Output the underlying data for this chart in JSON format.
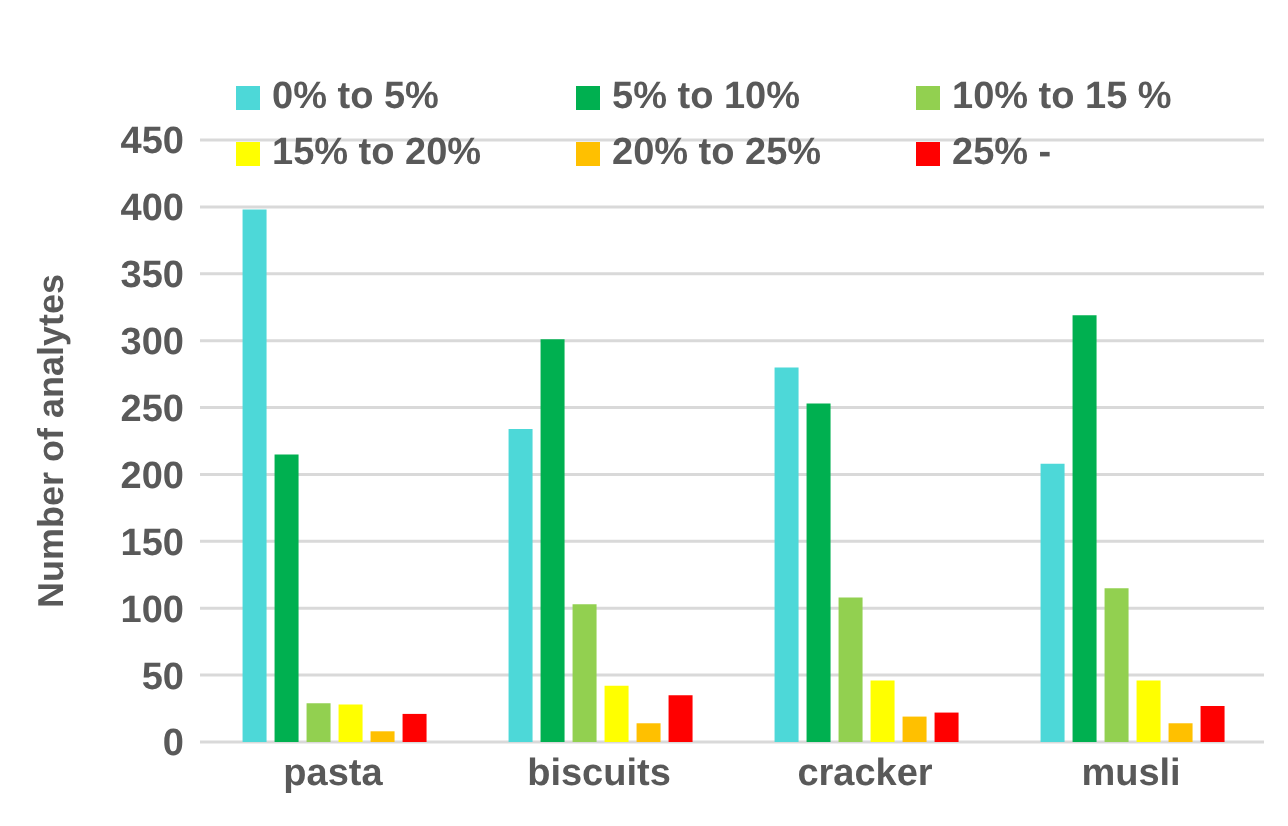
{
  "chart_data": {
    "type": "bar",
    "ylabel": "Number of analytes",
    "categories": [
      "pasta",
      "biscuits",
      "cracker",
      "musli"
    ],
    "series": [
      {
        "name": "0% to 5%",
        "color": "#4dd8d8",
        "values": [
          398,
          234,
          280,
          208
        ]
      },
      {
        "name": "5% to 10%",
        "color": "#00b050",
        "values": [
          215,
          301,
          253,
          319
        ]
      },
      {
        "name": "10% to 15 %",
        "color": "#92d050",
        "values": [
          29,
          103,
          108,
          115
        ]
      },
      {
        "name": "15% to 20%",
        "color": "#ffff00",
        "values": [
          28,
          42,
          46,
          46
        ]
      },
      {
        "name": "20% to 25%",
        "color": "#ffc000",
        "values": [
          8,
          14,
          19,
          14
        ]
      },
      {
        "name": "25% -",
        "color": "#ff0000",
        "values": [
          21,
          35,
          22,
          27
        ]
      }
    ],
    "ylim": [
      0,
      450
    ],
    "yticks": [
      0,
      50,
      100,
      150,
      200,
      250,
      300,
      350,
      400,
      450
    ],
    "grid": "y",
    "legend": "top"
  }
}
